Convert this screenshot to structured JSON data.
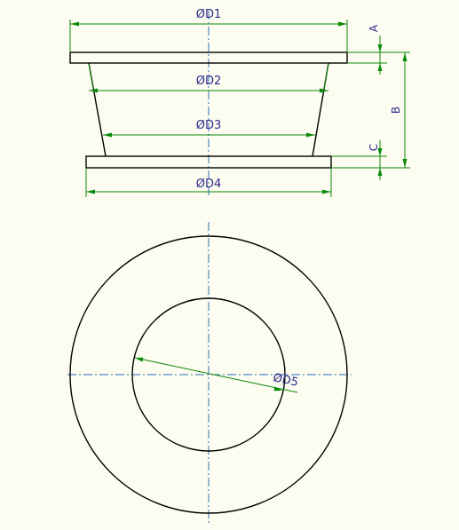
{
  "colors": {
    "background": "#fdfcf0",
    "outline": "#000000",
    "dimension_line": "#0a8a0a",
    "dimension_text": "#2b2b8c",
    "center_line": "#2c6fb0"
  },
  "labels": {
    "d1": "ØD1",
    "d2": "ØD2",
    "d3": "ØD3",
    "d4": "ØD4",
    "d5": "ØD5",
    "a": "A",
    "b": "B",
    "c": "C"
  }
}
